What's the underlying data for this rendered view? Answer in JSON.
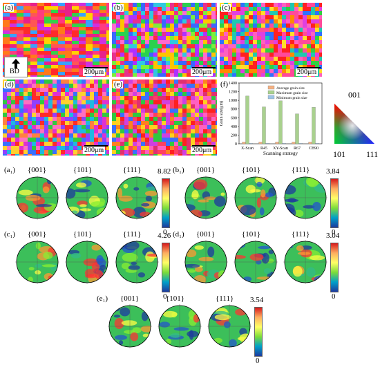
{
  "panels": {
    "a": {
      "label": "(a)",
      "scale": "200μm",
      "bd": "BD"
    },
    "b": {
      "label": "(b)",
      "scale": "200μm"
    },
    "c": {
      "label": "(c)",
      "scale": "200μm"
    },
    "d": {
      "label": "(d)",
      "scale": "200μm"
    },
    "e": {
      "label": "(e)",
      "scale": "200μm"
    },
    "f": {
      "label": "(f)"
    }
  },
  "ipf_key": {
    "top": "001",
    "left": "101",
    "right": "111"
  },
  "pole_figures": [
    {
      "label": "(a₁)",
      "max": "8.82",
      "min": "0",
      "poles": [
        "{001}",
        "{101}",
        "{111}"
      ]
    },
    {
      "label": "(b₁)",
      "max": "3.84",
      "min": "0",
      "poles": [
        "{001}",
        "{101}",
        "{111}"
      ]
    },
    {
      "label": "(c₁)",
      "max": "4.26",
      "min": "0",
      "poles": [
        "{001}",
        "{101}",
        "{111}"
      ]
    },
    {
      "label": "(d₁)",
      "max": "3.04",
      "min": "0",
      "poles": [
        "{001}",
        "{101}",
        "{111}"
      ]
    },
    {
      "label": "(e₁)",
      "max": "3.54",
      "min": "0",
      "poles": [
        "{001}",
        "{101}",
        "{111}"
      ]
    }
  ],
  "chart_data": {
    "type": "bar",
    "xlabel": "Scanning strategy",
    "ylabel": "Grain size(μm)",
    "ylim": [
      0,
      1400
    ],
    "yticks": [
      "0",
      "200",
      "400",
      "600",
      "800",
      "1000",
      "1200",
      "1400"
    ],
    "categories": [
      "X-Scan",
      "R45",
      "XY-Scan",
      "R67",
      "CB90"
    ],
    "series": [
      {
        "name": "Average grain size",
        "color": "#f4b183",
        "values": [
          40,
          40,
          40,
          40,
          40
        ]
      },
      {
        "name": "Maximum grain size",
        "color": "#a9d18e",
        "values": [
          1100,
          850,
          990,
          690,
          840
        ]
      },
      {
        "name": "Minimum grain size",
        "color": "#9dc3e6",
        "values": [
          12,
          12,
          12,
          12,
          12
        ]
      }
    ]
  }
}
